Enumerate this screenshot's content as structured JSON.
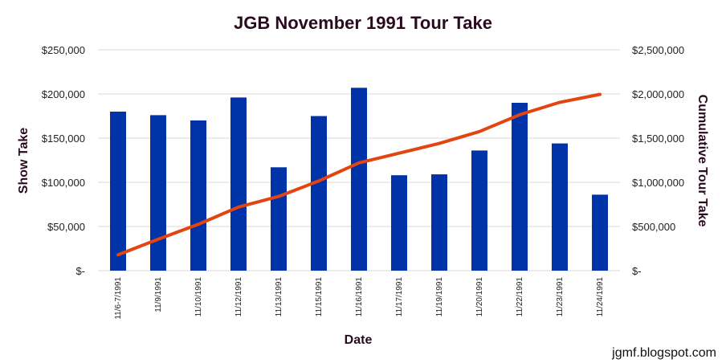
{
  "watermark": "jgmf.blogspot.com",
  "colors": {
    "bars": "#0033a8",
    "line": "#e2450f",
    "grid": "#d9d9d9",
    "text": "#2a0a1e"
  },
  "chart_data": {
    "type": "bar",
    "title": "JGB November 1991 Tour Take",
    "xlabel": "Date",
    "ylabel": "Show Take",
    "y2label": "Cumulative Tour Take",
    "grid": true,
    "ylim": [
      0,
      250000
    ],
    "y2lim": [
      0,
      2500000
    ],
    "y_ticks": [
      "$-",
      "$50,000",
      "$100,000",
      "$150,000",
      "$200,000",
      "$250,000"
    ],
    "y2_ticks": [
      "$-",
      "$500,000",
      "$1,000,000",
      "$1,500,000",
      "$2,000,000",
      "$2,500,000"
    ],
    "categories": [
      "11/6-7/1991",
      "11/9/1991",
      "11/10/1991",
      "11/12/1991",
      "11/13/1991",
      "11/15/1991",
      "11/16/1991",
      "11/17/1991",
      "11/19/1991",
      "11/20/1991",
      "11/22/1991",
      "11/23/1991",
      "11/24/1991"
    ],
    "series": [
      {
        "type": "bar",
        "axis": "left",
        "values": [
          180000,
          176000,
          170000,
          196000,
          117000,
          175000,
          207000,
          108000,
          109000,
          136000,
          190000,
          144000,
          86000
        ]
      },
      {
        "type": "line",
        "axis": "right",
        "values": [
          180000,
          355000,
          525000,
          720000,
          840000,
          1015000,
          1220000,
          1330000,
          1440000,
          1575000,
          1765000,
          1905000,
          1995000
        ]
      }
    ]
  }
}
